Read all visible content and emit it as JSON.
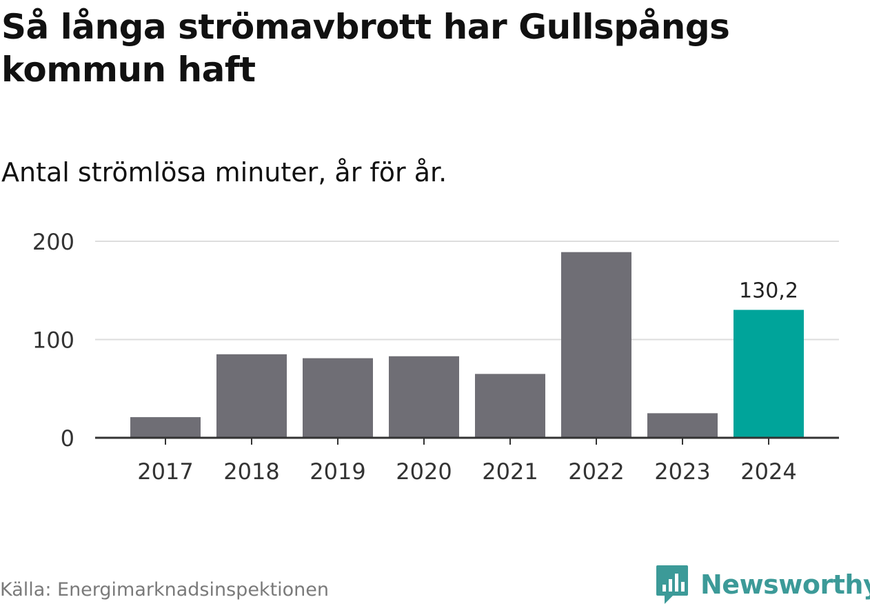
{
  "header": {
    "title": "Så långa strömavbrott har Gullspångs kommun haft",
    "subtitle": "Antal strömlösa minuter, år för år."
  },
  "footer": {
    "source": "Källa: Energimarknadsinspektionen",
    "brand": "Newsworthy"
  },
  "colors": {
    "bar_default": "#6f6e75",
    "bar_highlight": "#00a49a",
    "gridline": "#dddddd",
    "axis": "#333333",
    "tick_text": "#333333",
    "brand": "#3c9a98"
  },
  "chart_data": {
    "type": "bar",
    "title": "Så långa strömavbrott har Gullspångs kommun haft",
    "subtitle": "Antal strömlösa minuter, år för år.",
    "xlabel": "",
    "ylabel": "",
    "categories": [
      "2017",
      "2018",
      "2019",
      "2020",
      "2021",
      "2022",
      "2023",
      "2024"
    ],
    "values": [
      21,
      85,
      81,
      83,
      65,
      189,
      25,
      130.2
    ],
    "highlight_index": 7,
    "data_labels": [
      {
        "index": 7,
        "text": "130,2"
      }
    ],
    "ylim": [
      0,
      200
    ],
    "yticks": [
      0,
      100,
      200
    ],
    "ytick_labels": [
      "0",
      "100",
      "200"
    ],
    "grid": true,
    "legend": "none"
  }
}
